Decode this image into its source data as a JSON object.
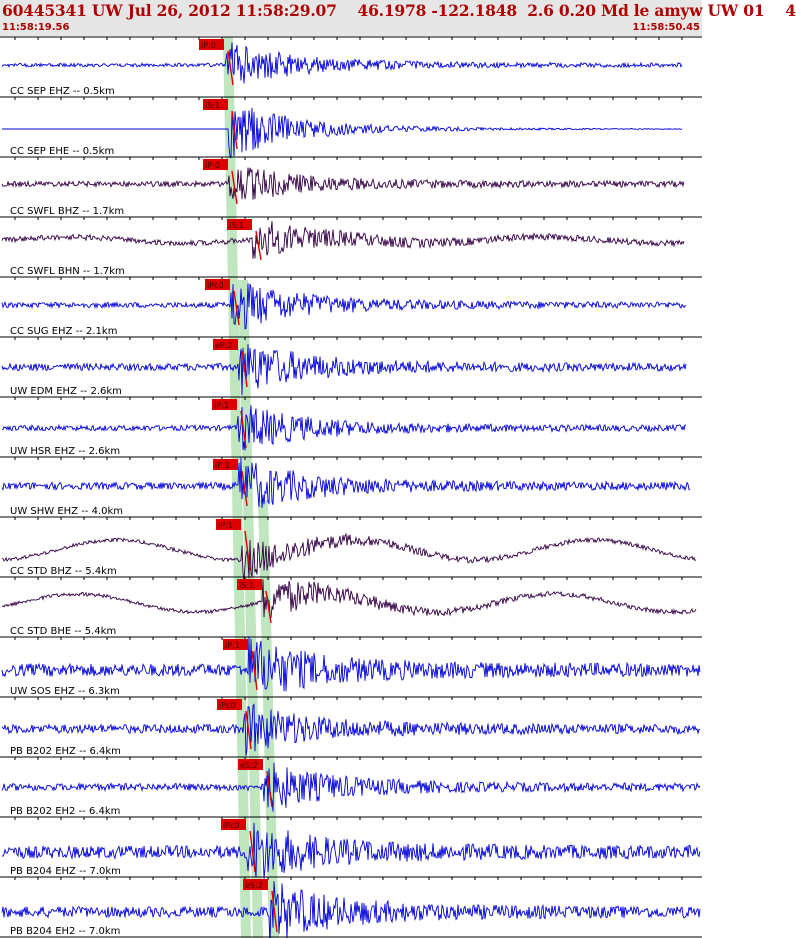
{
  "header": {
    "title": "60445341 UW Jul 26, 2012 11:58:29.07    46.1978 -122.1848  2.6 0.20 Md le amyw UW 01    4",
    "start_time": "11:58:19.56",
    "end_time": "11:58:50.45"
  },
  "colors": {
    "trace_blue": "#0000dd",
    "trace_purple": "#330044",
    "pick_red": "#dd0000",
    "window_green": "#bfe6bf",
    "header_bg": "#e6e6e6",
    "header_text": "#b00000"
  },
  "traces": [
    {
      "label": "CC SEP EHZ -- 0.5km",
      "pick": "iP:0",
      "color": "blue"
    },
    {
      "label": "CC SEP EHE -- 0.5km",
      "pick": "iS:1",
      "color": "blue"
    },
    {
      "label": "CC SWFL BHZ -- 1.7km",
      "pick": "iP:0",
      "color": "purple"
    },
    {
      "label": "CC SWFL BHN -- 1.7km",
      "pick": "iS:1",
      "color": "purple"
    },
    {
      "label": "CC SUG EHZ -- 2.1km",
      "pick": "iPc0",
      "color": "blue"
    },
    {
      "label": "UW EDM EHZ -- 2.6km",
      "pick": "eP:2",
      "color": "blue"
    },
    {
      "label": "UW HSR EHZ -- 2.6km",
      "pick": "iP:1",
      "color": "blue"
    },
    {
      "label": "UW SHW EHZ -- 4.0km",
      "pick": "iP:1",
      "color": "blue"
    },
    {
      "label": "CC STD BHZ -- 5.4km",
      "pick": "iP:1",
      "color": "purple"
    },
    {
      "label": "CC STD BHE -- 5.4km",
      "pick": "iS:1",
      "color": "purple"
    },
    {
      "label": "UW SOS EHZ -- 6.3km",
      "pick": "iP:1",
      "color": "blue"
    },
    {
      "label": "PB B202 EHZ -- 6.4km",
      "pick": "iPc0",
      "color": "blue"
    },
    {
      "label": "PB B202 EH2 -- 6.4km",
      "pick": "eS:2",
      "color": "blue"
    },
    {
      "label": "PB B204 EHZ -- 7.0km",
      "pick": "iPc0",
      "color": "blue"
    },
    {
      "label": "PB B204 EH2 -- 7.0km",
      "pick": "eS:2",
      "color": "blue"
    }
  ]
}
